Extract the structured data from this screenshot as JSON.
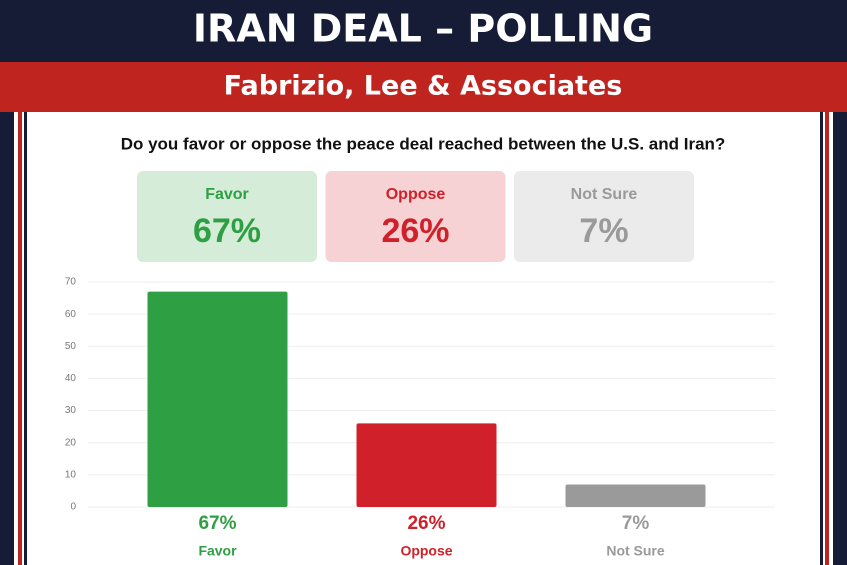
{
  "header": {
    "title": "IRAN DEAL – POLLING",
    "subtitle": "Fabrizio, Lee & Associates"
  },
  "chart_data": {
    "type": "bar",
    "title": "Do you favor or oppose the peace deal reached between the U.S. and Iran?",
    "categories": [
      "Favor",
      "Oppose",
      "Not Sure"
    ],
    "values": [
      67,
      26,
      7
    ],
    "value_labels": [
      "67%",
      "26%",
      "7%"
    ],
    "colors": [
      "#2ea043",
      "#d0202a",
      "#9a9a9a"
    ],
    "ylim": [
      0,
      70
    ],
    "yticks": [
      0,
      10,
      20,
      30,
      40,
      50,
      60,
      70
    ],
    "grid": true
  }
}
